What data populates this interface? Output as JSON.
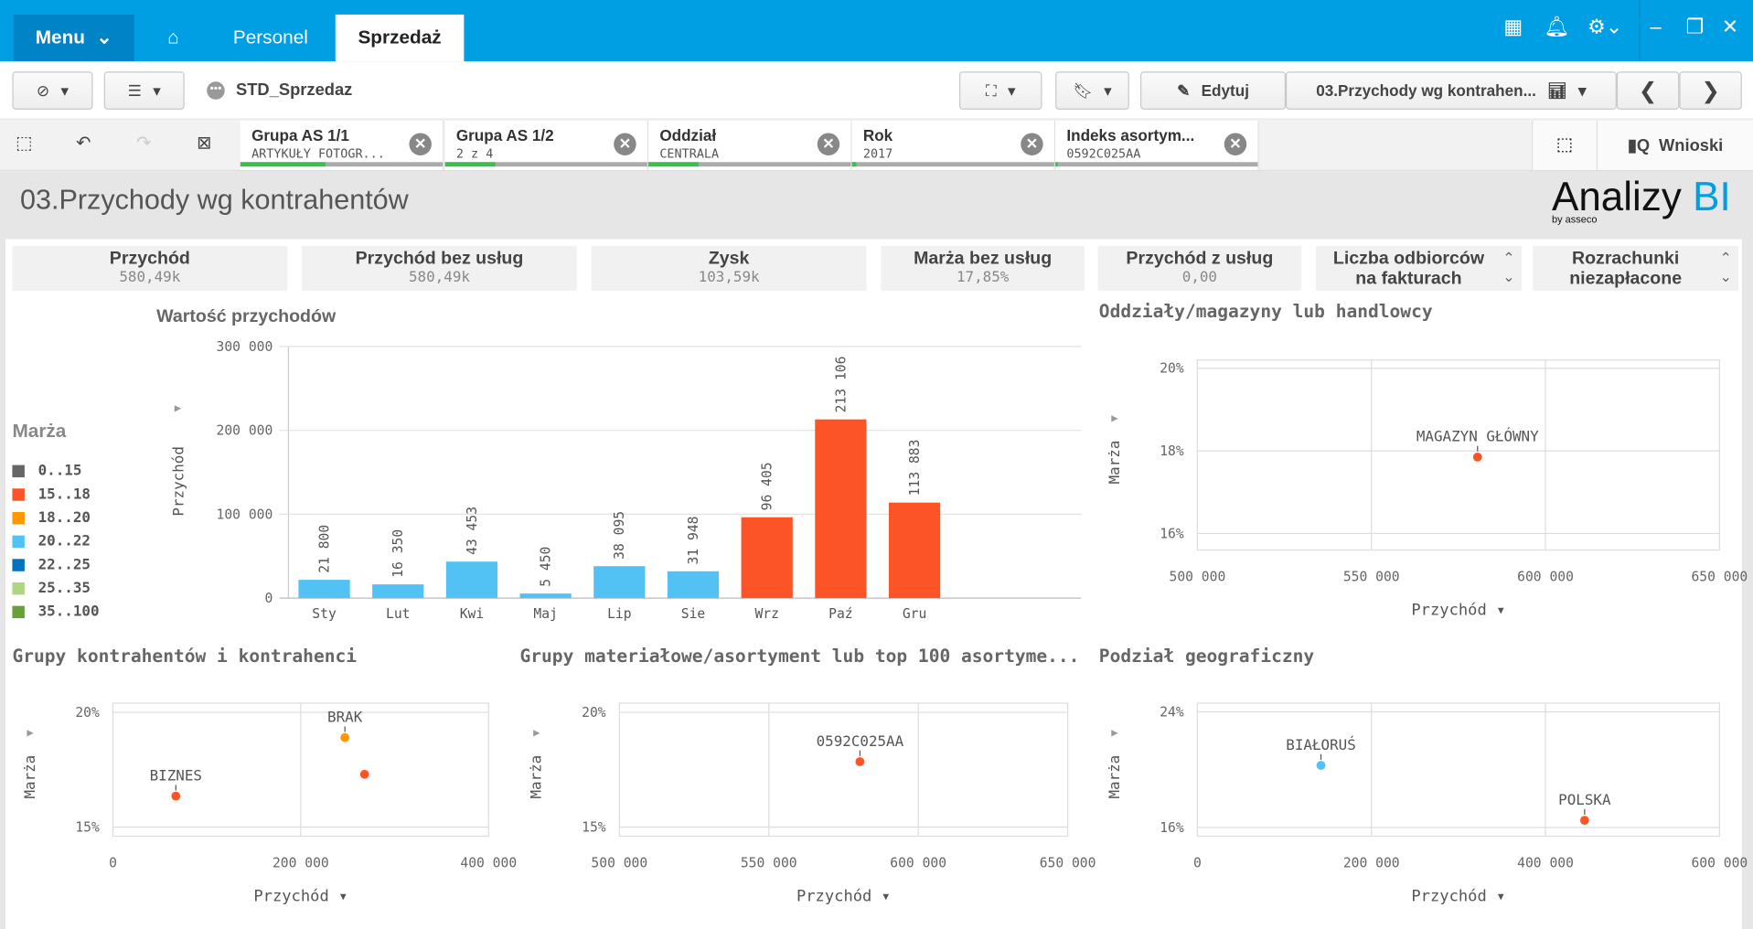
{
  "nav": {
    "menu_label": "Menu",
    "tabs": [
      "Personel",
      "Sprzedaż"
    ],
    "active_tab": "Sprzedaż"
  },
  "toolbar": {
    "app_name": "STD_Sprzedaz",
    "edit_label": "Edytuj",
    "sheet_selector": "03.Przychody wg kontrahen..."
  },
  "selections": [
    {
      "field": "Grupa AS 1/1",
      "value": "ARTYKUŁY FOTOGR...",
      "fill": 0.42
    },
    {
      "field": "Grupa AS 1/2",
      "value": "2 z 4",
      "fill": 0.25
    },
    {
      "field": "Oddział",
      "value": "CENTRALA",
      "fill": 0.25
    },
    {
      "field": "Rok",
      "value": "2017",
      "fill": 0.02
    },
    {
      "field": "Indeks asortym...",
      "value": "0592C025AA",
      "fill": 0.01
    }
  ],
  "insights_label": "Wnioski",
  "sheet_title": "03.Przychody wg kontrahentów",
  "logo": {
    "text": "Analizy",
    "accent": "BI",
    "by": "by asseco"
  },
  "kpis": [
    {
      "label": "Przychód",
      "value": "580,49k"
    },
    {
      "label": "Przychód bez usług",
      "value": "580,49k"
    },
    {
      "label": "Zysk",
      "value": "103,59k"
    },
    {
      "label": "Marża bez usług",
      "value": "17,85%"
    },
    {
      "label": "Przychód z usług",
      "value": "0,00"
    },
    {
      "label": "Liczba odbiorców na fakturach",
      "value": ""
    },
    {
      "label": "Rozrachunki niezapłacone",
      "value": ""
    }
  ],
  "colors": {
    "topbar": "#009fe3",
    "blue": "#52c2f5",
    "red": "#fc5426",
    "orange": "#ff9800",
    "selection_green": "#3cbf4d"
  },
  "legend": {
    "title": "Marża",
    "items": [
      {
        "label": "0..15",
        "color": "#666666"
      },
      {
        "label": "15..18",
        "color": "#fc5426"
      },
      {
        "label": "18..20",
        "color": "#ff9800"
      },
      {
        "label": "20..22",
        "color": "#52c2f5"
      },
      {
        "label": "22..25",
        "color": "#0071bc"
      },
      {
        "label": "25..35",
        "color": "#aed581"
      },
      {
        "label": "35..100",
        "color": "#689f38"
      }
    ]
  },
  "chart_data": [
    {
      "type": "bar",
      "title": "Wartość przychodów",
      "ylabel": "Przychód",
      "xlabel": "",
      "ylim": [
        0,
        300000
      ],
      "yticks": [
        "0",
        "100 000",
        "200 000",
        "300 000"
      ],
      "grid": true,
      "categories": [
        "Sty",
        "Lut",
        "Kwi",
        "Maj",
        "Lip",
        "Sie",
        "Wrz",
        "Paź",
        "Gru"
      ],
      "values": [
        21800,
        16350,
        43453,
        5450,
        38095,
        31948,
        96405,
        213106,
        113883
      ],
      "labels": [
        "21 800",
        "16 350",
        "43 453",
        "5 450",
        "38 095",
        "31 948",
        "96 405",
        "213 106",
        "113 883"
      ],
      "colors": [
        "#52c2f5",
        "#52c2f5",
        "#52c2f5",
        "#52c2f5",
        "#52c2f5",
        "#52c2f5",
        "#fc5426",
        "#fc5426",
        "#fc5426"
      ]
    },
    {
      "type": "scatter",
      "title": "Oddziały/magazyny lub handlowcy",
      "xlabel": "Przychód",
      "ylabel": "Marża",
      "xlim": [
        500000,
        650000
      ],
      "ylim": [
        15.6,
        20.2
      ],
      "xticks": [
        500000,
        550000,
        600000,
        650000
      ],
      "xtick_labels": [
        "500 000",
        "550 000",
        "600 000",
        "650 000"
      ],
      "yticks": [
        16,
        18,
        20
      ],
      "ytick_labels": [
        "16%",
        "18%",
        "20%"
      ],
      "points": [
        {
          "label": "MAGAZYN GŁÓWNY",
          "x": 580490,
          "y": 17.85,
          "color": "#fc5426"
        }
      ]
    },
    {
      "type": "scatter",
      "title": "Grupy kontrahentów i kontrahenci",
      "xlabel": "Przychód",
      "ylabel": "Marża",
      "xlim": [
        0,
        400000
      ],
      "ylim": [
        14.6,
        20.4
      ],
      "xticks": [
        0,
        200000,
        400000
      ],
      "xtick_labels": [
        "0",
        "200 000",
        "400 000"
      ],
      "yticks": [
        15,
        20
      ],
      "ytick_labels": [
        "15%",
        "20%"
      ],
      "points": [
        {
          "label": "BRAK",
          "x": 247000,
          "y": 18.9,
          "color": "#ff9800"
        },
        {
          "label": "",
          "x": 268000,
          "y": 17.3,
          "color": "#fc5426"
        },
        {
          "label": "BIZNES",
          "x": 67000,
          "y": 16.35,
          "color": "#fc5426"
        }
      ]
    },
    {
      "type": "scatter",
      "title": "Grupy materiałowe/asortyment lub top 100 asortyme...",
      "xlabel": "Przychód",
      "ylabel": "Marża",
      "xlim": [
        500000,
        650000
      ],
      "ylim": [
        14.6,
        20.4
      ],
      "xticks": [
        500000,
        550000,
        600000,
        650000
      ],
      "xtick_labels": [
        "500 000",
        "550 000",
        "600 000",
        "650 000"
      ],
      "yticks": [
        15,
        20
      ],
      "ytick_labels": [
        "15%",
        "20%"
      ],
      "points": [
        {
          "label": "0592C025AA",
          "x": 580490,
          "y": 17.85,
          "color": "#fc5426"
        }
      ]
    },
    {
      "type": "scatter",
      "title": "Podział geograficzny",
      "xlabel": "Przychód",
      "ylabel": "Marża",
      "xlim": [
        0,
        600000
      ],
      "ylim": [
        15.4,
        24.6
      ],
      "xticks": [
        0,
        200000,
        400000,
        600000
      ],
      "xtick_labels": [
        "0",
        "200 000",
        "400 000",
        "600 000"
      ],
      "yticks": [
        16,
        24
      ],
      "ytick_labels": [
        "16%",
        "24%"
      ],
      "points": [
        {
          "label": "BIAŁORUŚ",
          "x": 142000,
          "y": 20.3,
          "color": "#52c2f5"
        },
        {
          "label": "POLSKA",
          "x": 445000,
          "y": 16.5,
          "color": "#fc5426"
        }
      ]
    }
  ]
}
